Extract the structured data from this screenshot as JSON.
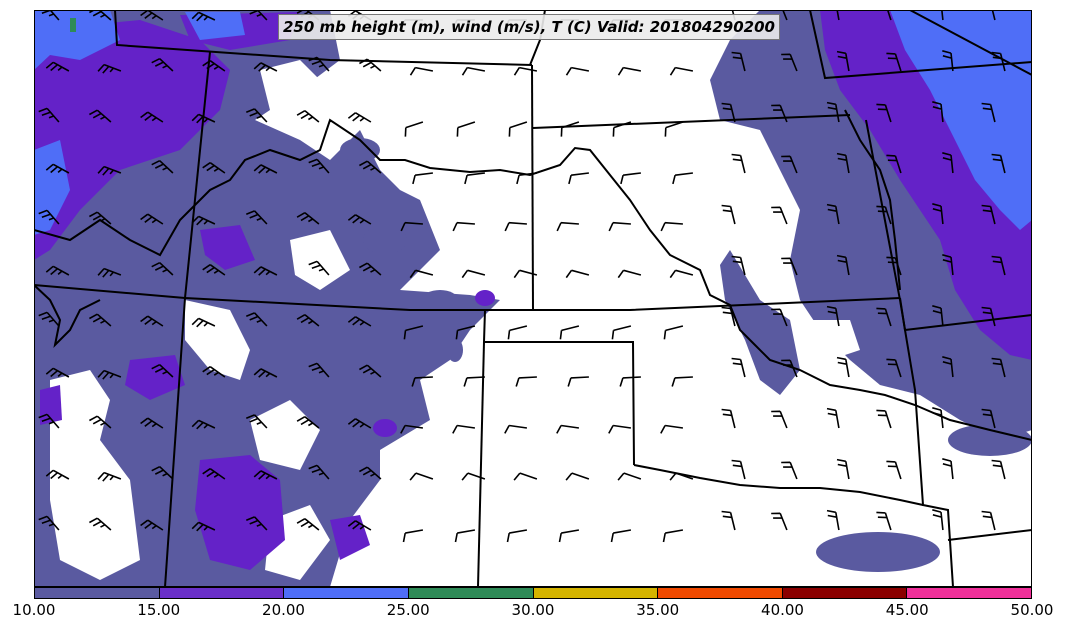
{
  "title": "250 mb height (m), wind (m/s), T (C) Valid: 201804290200",
  "colorbar": {
    "ticks": [
      "10.00",
      "15.00",
      "20.00",
      "25.00",
      "30.00",
      "35.00",
      "40.00",
      "45.00",
      "50.00"
    ],
    "colors": [
      "#5a5aa0",
      "#6a2fc8",
      "#4f6ef7",
      "#2e8b57",
      "#d4b400",
      "#f04a00",
      "#8b0000",
      "#f0309a"
    ]
  },
  "fill_colors": {
    "speed_10_15": "#5a5aa0",
    "speed_15_20": "#6422c8",
    "speed_20_25": "#4f6ef7",
    "speed_25_30": "#2e8b57"
  },
  "line_color": "#000000"
}
